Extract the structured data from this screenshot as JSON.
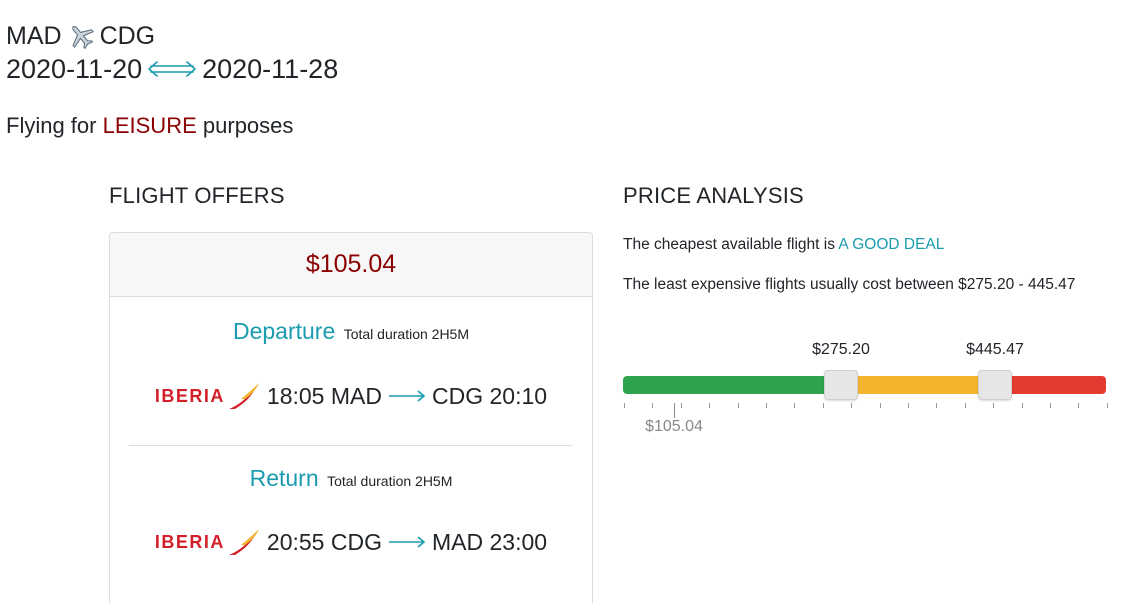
{
  "header": {
    "origin": "MAD",
    "destination": "CDG",
    "depart_date": "2020-11-20",
    "return_date": "2020-11-28",
    "purpose_prefix": "Flying for",
    "purpose_value": "LEISURE",
    "purpose_suffix": "purposes",
    "icons": {
      "plane": "airplane-icon",
      "dates_arrow": "double-arrow-icon"
    }
  },
  "offers": {
    "title": "FLIGHT OFFERS",
    "price": "$105.04",
    "departure": {
      "label": "Departure",
      "duration": "Total duration 2H5M",
      "airline": "IBERIA",
      "dep_time": "18:05",
      "from": "MAD",
      "to": "CDG",
      "arr_time": "20:10"
    },
    "return": {
      "label": "Return",
      "duration": "Total duration 2H5M",
      "airline": "IBERIA",
      "dep_time": "20:55",
      "from": "CDG",
      "to": "MAD",
      "arr_time": "23:00"
    }
  },
  "analysis": {
    "title": "PRICE ANALYSIS",
    "cheapest_prefix": "The cheapest available flight is",
    "cheapest_verdict": "A GOOD DEAL",
    "range_text": "The least expensive flights usually cost between $275.20 - 445.47",
    "low_handle_label": "$275.20",
    "high_handle_label": "$445.47",
    "current_price_label": "$105.04",
    "colors": {
      "good": "#2ea44f",
      "typical": "#f4b52e",
      "high": "#e33a32"
    }
  }
}
